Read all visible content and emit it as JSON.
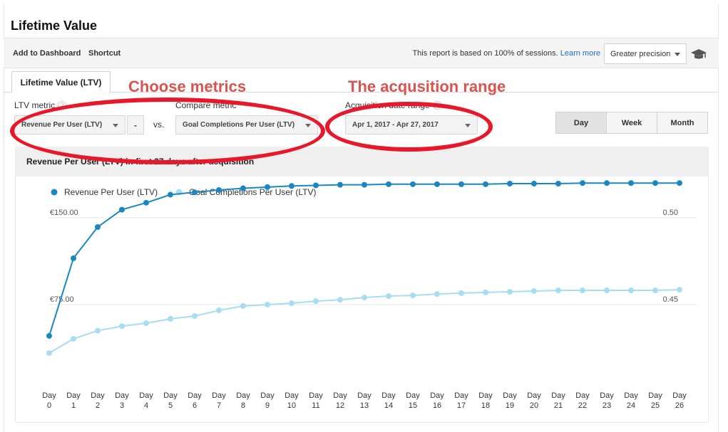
{
  "page": {
    "title": "Lifetime Value"
  },
  "toolbar": {
    "add_to_dashboard": "Add to Dashboard",
    "shortcut": "Shortcut",
    "sampling_note": "This report is based on 100% of sessions.",
    "learn_more": "Learn more",
    "precision": "Greater precision",
    "cap_icon": "graduation-cap-icon"
  },
  "tabs": [
    {
      "label": "Lifetime Value (LTV)"
    }
  ],
  "annotations": {
    "metrics": "Choose metrics",
    "range": "The acqusition range",
    "color": "#d9534f",
    "ellipse_color": "#e8182b"
  },
  "controls": {
    "ltv_metric_label": "LTV metric",
    "ltv_metric_value": "Revenue Per User (LTV)",
    "minus": "-",
    "vs": "vs.",
    "compare_label": "Compare metric",
    "compare_value": "Goal Completions Per User (LTV)",
    "date_label": "Acquisition date range",
    "date_value": "Apr 1, 2017  -  Apr 27, 2017",
    "help": "?",
    "granularity": [
      "Day",
      "Week",
      "Month"
    ],
    "granularity_selected": "Day"
  },
  "chart": {
    "title": "Revenue Per User (LTV) in first 27 days after acquisition"
  },
  "chart_data": {
    "type": "line",
    "x_prefix": "Day",
    "x": [
      0,
      1,
      2,
      3,
      4,
      5,
      6,
      7,
      8,
      9,
      10,
      11,
      12,
      13,
      14,
      15,
      16,
      17,
      18,
      19,
      20,
      21,
      22,
      23,
      24,
      25,
      26
    ],
    "series": [
      {
        "name": "Revenue Per User (LTV)",
        "color": "#1a87c4",
        "axis": "left",
        "values": [
          48,
          115,
          142,
          157,
          163,
          170,
          172,
          174,
          175.5,
          176.5,
          177.5,
          178,
          178.5,
          178.5,
          179,
          179,
          179,
          179,
          179,
          179.5,
          179.5,
          179.5,
          180,
          180,
          180,
          180,
          180
        ]
      },
      {
        "name": "Goal Completions Per User (LTV)",
        "color": "#a8dcf0",
        "axis": "right",
        "values": [
          0.4221,
          0.4303,
          0.435,
          0.4376,
          0.4393,
          0.4418,
          0.4434,
          0.4467,
          0.4492,
          0.45,
          0.4508,
          0.452,
          0.4528,
          0.4541,
          0.4549,
          0.4553,
          0.4561,
          0.4566,
          0.457,
          0.4574,
          0.4578,
          0.4582,
          0.4582,
          0.4582,
          0.4582,
          0.4582,
          0.4586
        ]
      }
    ],
    "y_left": {
      "ticks": [
        {
          "value": 150,
          "label": "€150.00"
        },
        {
          "value": 75,
          "label": "€75.00"
        }
      ],
      "range": [
        0,
        300
      ]
    },
    "y_right": {
      "ticks": [
        {
          "value": 0.5,
          "label": "0.50"
        },
        {
          "value": 0.45,
          "label": "0.45"
        }
      ],
      "range": [
        0.4,
        0.6
      ]
    },
    "grid": "horizontal",
    "legend": "top-left"
  }
}
